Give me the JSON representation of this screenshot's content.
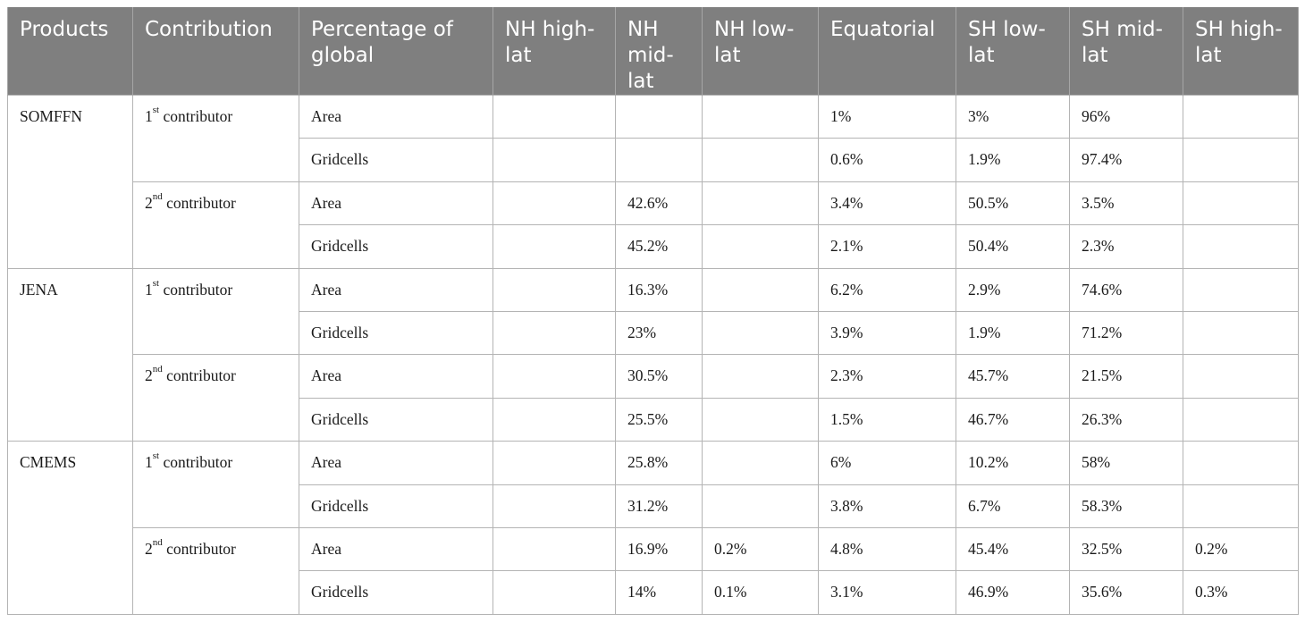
{
  "table": {
    "headers": [
      "Products",
      "Contribution",
      "Percentage of global",
      "NH high-lat",
      "NH mid-lat",
      "NH low-lat",
      "Equatorial",
      "SH low-lat",
      "SH mid-lat",
      "SH high-lat"
    ],
    "contribution_labels": {
      "first": {
        "ord": "1",
        "sup": "st",
        "text": " contributor"
      },
      "second": {
        "ord": "2",
        "sup": "nd",
        "text": " contributor"
      }
    },
    "products": [
      {
        "name": "SOMFFN",
        "groups": [
          {
            "rows": [
              {
                "metric": "Area",
                "values": [
                  "",
                  "",
                  "",
                  "1%",
                  "3%",
                  "96%",
                  ""
                ]
              },
              {
                "metric": "Gridcells",
                "values": [
                  "",
                  "",
                  "",
                  "0.6%",
                  "1.9%",
                  "97.4%",
                  ""
                ]
              }
            ]
          },
          {
            "rows": [
              {
                "metric": "Area",
                "values": [
                  "",
                  "42.6%",
                  "",
                  "3.4%",
                  "50.5%",
                  "3.5%",
                  ""
                ]
              },
              {
                "metric": "Gridcells",
                "values": [
                  "",
                  "45.2%",
                  "",
                  "2.1%",
                  "50.4%",
                  "2.3%",
                  ""
                ]
              }
            ]
          }
        ]
      },
      {
        "name": "JENA",
        "groups": [
          {
            "rows": [
              {
                "metric": "Area",
                "values": [
                  "",
                  "16.3%",
                  "",
                  "6.2%",
                  "2.9%",
                  "74.6%",
                  ""
                ]
              },
              {
                "metric": "Gridcells",
                "values": [
                  "",
                  "23%",
                  "",
                  "3.9%",
                  "1.9%",
                  "71.2%",
                  ""
                ]
              }
            ]
          },
          {
            "rows": [
              {
                "metric": "Area",
                "values": [
                  "",
                  "30.5%",
                  "",
                  "2.3%",
                  "45.7%",
                  "21.5%",
                  ""
                ]
              },
              {
                "metric": "Gridcells",
                "values": [
                  "",
                  "25.5%",
                  "",
                  "1.5%",
                  "46.7%",
                  "26.3%",
                  ""
                ]
              }
            ]
          }
        ]
      },
      {
        "name": "CMEMS",
        "groups": [
          {
            "rows": [
              {
                "metric": "Area",
                "values": [
                  "",
                  "25.8%",
                  "",
                  "6%",
                  "10.2%",
                  "58%",
                  ""
                ]
              },
              {
                "metric": "Gridcells",
                "values": [
                  "",
                  "31.2%",
                  "",
                  "3.8%",
                  "6.7%",
                  "58.3%",
                  ""
                ]
              }
            ]
          },
          {
            "rows": [
              {
                "metric": "Area",
                "values": [
                  "",
                  "16.9%",
                  "0.2%",
                  "4.8%",
                  "45.4%",
                  "32.5%",
                  "0.2%"
                ]
              },
              {
                "metric": "Gridcells",
                "values": [
                  "",
                  "14%",
                  "0.1%",
                  "3.1%",
                  "46.9%",
                  "35.6%",
                  "0.3%"
                ]
              }
            ]
          }
        ]
      }
    ]
  }
}
